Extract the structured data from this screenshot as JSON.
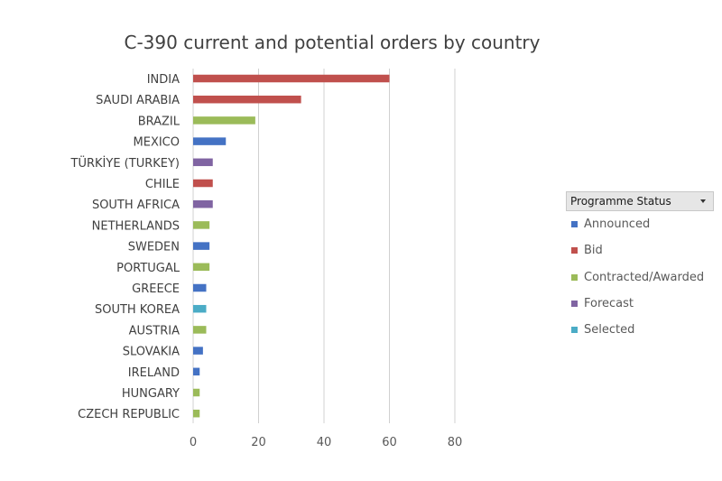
{
  "chart_data": {
    "type": "bar",
    "orientation": "horizontal",
    "title": "C-390 current and potential orders by country",
    "xlim": [
      0,
      80
    ],
    "x_ticks": [
      "0",
      "20",
      "40",
      "60",
      "80"
    ],
    "grid": true,
    "legend_position": "right",
    "legend_title": "Programme Status",
    "categories": [
      "INDIA",
      "SAUDI ARABIA",
      "BRAZIL",
      "MEXICO",
      "TÜRKİYE (TURKEY)",
      "CHILE",
      "SOUTH AFRICA",
      "NETHERLANDS",
      "SWEDEN",
      "PORTUGAL",
      "GREECE",
      "SOUTH KOREA",
      "AUSTRIA",
      "SLOVAKIA",
      "IRELAND",
      "HUNGARY",
      "CZECH REPUBLIC"
    ],
    "values": [
      60,
      33,
      19,
      10,
      6,
      6,
      6,
      5,
      5,
      5,
      4,
      4,
      4,
      3,
      2,
      2,
      2
    ],
    "status": [
      "Bid",
      "Bid",
      "Contracted/Awarded",
      "Announced",
      "Forecast",
      "Bid",
      "Forecast",
      "Contracted/Awarded",
      "Announced",
      "Contracted/Awarded",
      "Announced",
      "Selected",
      "Contracted/Awarded",
      "Announced",
      "Announced",
      "Contracted/Awarded",
      "Contracted/Awarded"
    ],
    "series": [
      {
        "name": "Announced",
        "color": "#4472C4"
      },
      {
        "name": "Bid",
        "color": "#C0504D"
      },
      {
        "name": "Contracted/Awarded",
        "color": "#9BBB59"
      },
      {
        "name": "Forecast",
        "color": "#8064A2"
      },
      {
        "name": "Selected",
        "color": "#4BACC6"
      }
    ]
  }
}
